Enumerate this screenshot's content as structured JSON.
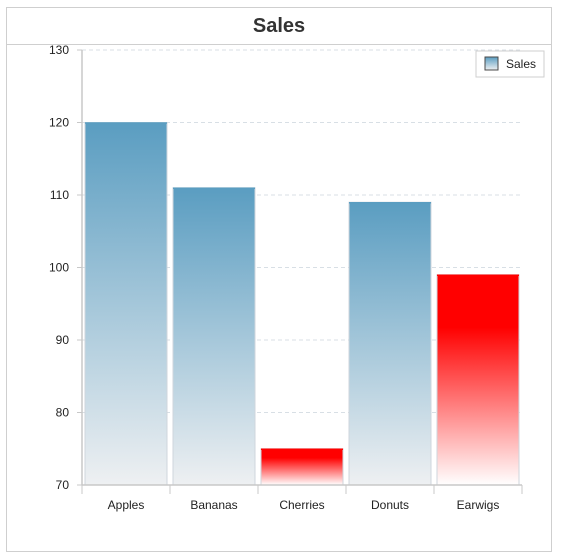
{
  "header": {
    "title": "Sales"
  },
  "chart_data": {
    "type": "bar",
    "title": "Sales",
    "categories": [
      "Apples",
      "Bananas",
      "Cherries",
      "Donuts",
      "Earwigs"
    ],
    "series": [
      {
        "name": "Sales",
        "values": [
          120,
          111,
          75,
          109,
          99
        ]
      }
    ],
    "ylim": [
      70,
      130
    ],
    "yticks": [
      70,
      80,
      90,
      100,
      110,
      120,
      130
    ],
    "grid": true,
    "legend": "top-right",
    "bar_gradients": [
      "blue",
      "blue",
      "red",
      "blue",
      "red"
    ],
    "colors": {
      "blue_top": "#5a9dc1",
      "blue_bottom": "#eef0f2",
      "red_top": "#ff0000",
      "red_bottom": "#ffffff",
      "grid": "#d8dfe5",
      "axis": "#c8c8c8"
    }
  }
}
